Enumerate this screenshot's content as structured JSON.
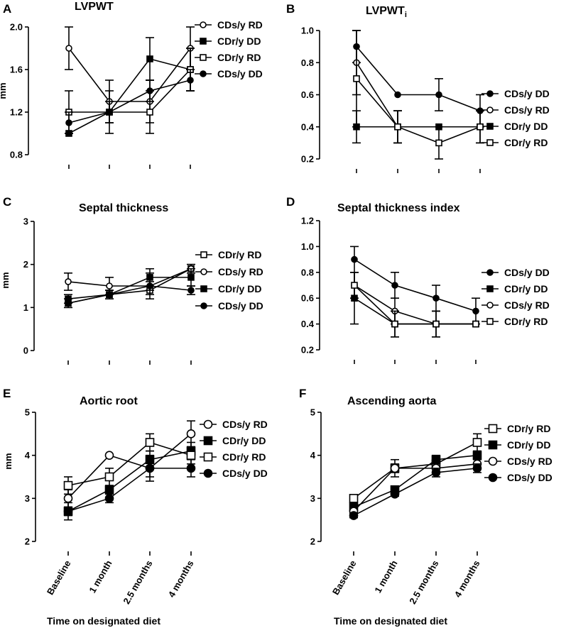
{
  "chart_data": [
    {
      "panel": "A",
      "type": "line",
      "title": "LVPWT",
      "ylabel": "mm",
      "ylim": [
        0.8,
        2.0
      ],
      "yticks": [
        0.8,
        1.2,
        1.6,
        2.0
      ],
      "tick_labels": [
        "0.8",
        "1.2",
        "1.6",
        "2.0"
      ],
      "categories": [
        "Baseline",
        "1 month",
        "2.5 months",
        "4 months"
      ],
      "show_xlabels": false,
      "legend_position": "right",
      "series": [
        {
          "name": "CDs/y RD",
          "marker": "circle-open",
          "values": [
            1.8,
            1.3,
            1.3,
            1.8
          ],
          "errors": [
            0.2,
            0.2,
            0.2,
            0.2
          ]
        },
        {
          "name": "CDr/y DD",
          "marker": "square-filled",
          "values": [
            1.0,
            1.2,
            1.7,
            1.6
          ],
          "errors": [
            0,
            0,
            0.2,
            0.2
          ]
        },
        {
          "name": "CDr/y RD",
          "marker": "square-open",
          "values": [
            1.2,
            1.2,
            1.2,
            1.6
          ],
          "errors": [
            0.2,
            0.2,
            0.2,
            0.2
          ]
        },
        {
          "name": "CDs/y DD",
          "marker": "circle-filled",
          "values": [
            1.1,
            1.2,
            1.4,
            1.5
          ],
          "errors": [
            0.1,
            0.1,
            0.1,
            0.1
          ]
        }
      ]
    },
    {
      "panel": "B",
      "type": "line",
      "title": "LVPWT",
      "title_sub": "i",
      "ylabel": "",
      "ylim": [
        0.2,
        1.0
      ],
      "yticks": [
        0.2,
        0.4,
        0.6,
        0.8,
        1.0
      ],
      "tick_labels": [
        "0.2",
        "0.4",
        "0.6",
        "0.8",
        "1.0"
      ],
      "categories": [
        "Baseline",
        "1 month",
        "2.5 months",
        "4 months"
      ],
      "show_xlabels": false,
      "legend_position": "right",
      "series": [
        {
          "name": "CDs/y DD",
          "marker": "circle-filled",
          "values": [
            0.9,
            0.6,
            0.6,
            0.5
          ],
          "errors": [
            0.1,
            0,
            0.1,
            0.1
          ]
        },
        {
          "name": "CDs/y RD",
          "marker": "circle-open",
          "values": [
            0.8,
            0.4,
            0.4,
            0.4
          ],
          "errors": [
            0.2,
            0.1,
            0,
            0.1
          ]
        },
        {
          "name": "CDr/y DD",
          "marker": "square-filled",
          "values": [
            0.4,
            0.4,
            0.4,
            0.4
          ],
          "errors": [
            0.1,
            0.1,
            0,
            0
          ]
        },
        {
          "name": "CDr/y RD",
          "marker": "square-open",
          "values": [
            0.7,
            0.4,
            0.3,
            0.4
          ],
          "errors": [
            0.3,
            0.1,
            0.1,
            0.1
          ]
        }
      ]
    },
    {
      "panel": "C",
      "type": "line",
      "title": "Septal thickness",
      "ylabel": "mm",
      "ylim": [
        0,
        3
      ],
      "yticks": [
        0,
        1,
        2,
        3
      ],
      "tick_labels": [
        "0",
        "1",
        "2",
        "3"
      ],
      "categories": [
        "Baseline",
        "1 month",
        "2.5 months",
        "4 months"
      ],
      "show_xlabels": false,
      "legend_position": "right",
      "series": [
        {
          "name": "CDr/y RD",
          "marker": "square-open",
          "values": [
            1.1,
            1.3,
            1.4,
            1.9
          ],
          "errors": [
            0.1,
            0.1,
            0.1,
            0.1
          ]
        },
        {
          "name": "CDs/y RD",
          "marker": "circle-open",
          "values": [
            1.6,
            1.5,
            1.5,
            1.9
          ],
          "errors": [
            0.2,
            0.2,
            0.3,
            0.1
          ]
        },
        {
          "name": "CDr/y DD",
          "marker": "square-filled",
          "values": [
            1.2,
            1.3,
            1.7,
            1.7
          ],
          "errors": [
            0.1,
            0.1,
            0.2,
            0.2
          ]
        },
        {
          "name": "CDs/y DD",
          "marker": "circle-filled",
          "values": [
            1.1,
            1.3,
            1.5,
            1.4
          ],
          "errors": [
            0.1,
            0.1,
            0.1,
            0.1
          ]
        }
      ]
    },
    {
      "panel": "D",
      "type": "line",
      "title": "Septal thickness index",
      "ylabel": "",
      "ylim": [
        0.2,
        1.2
      ],
      "yticks": [
        0.2,
        0.4,
        0.6,
        0.8,
        1.0,
        1.2
      ],
      "tick_labels": [
        "0.2",
        "0.4",
        "0.6",
        "0.8",
        "1.0",
        "1.2"
      ],
      "categories": [
        "Baseline",
        "1 month",
        "2.5 months",
        "4 months"
      ],
      "show_xlabels": false,
      "legend_position": "right",
      "series": [
        {
          "name": "CDs/y DD",
          "marker": "circle-filled",
          "values": [
            0.9,
            0.7,
            0.6,
            0.5
          ],
          "errors": [
            0.1,
            0.1,
            0.1,
            0.1
          ]
        },
        {
          "name": "CDr/y DD",
          "marker": "square-filled",
          "values": [
            0.6,
            0.4,
            0.4,
            0.4
          ],
          "errors": [
            0.2,
            0.1,
            0.1,
            0
          ]
        },
        {
          "name": "CDs/y RD",
          "marker": "circle-open",
          "values": [
            0.7,
            0.5,
            0.4,
            0.4
          ],
          "errors": [
            0.1,
            0.1,
            0.1,
            0
          ]
        },
        {
          "name": "CDr/y RD",
          "marker": "square-open",
          "values": [
            0.7,
            0.4,
            0.4,
            0.4
          ],
          "errors": [
            0.1,
            0.1,
            0,
            0
          ]
        }
      ]
    },
    {
      "panel": "E",
      "type": "line",
      "title": "Aortic root",
      "ylabel": "mm",
      "ylim": [
        2,
        5
      ],
      "yticks": [
        2,
        3,
        4,
        5
      ],
      "tick_labels": [
        "2",
        "3",
        "4",
        "5"
      ],
      "categories": [
        "Baseline",
        "1 month",
        "2.5 months",
        "4 months"
      ],
      "show_xlabels": true,
      "xlabel": "Time on designated diet",
      "legend_position": "right",
      "series": [
        {
          "name": "CDs/y RD",
          "marker": "circle-open",
          "values": [
            3.0,
            4.0,
            3.7,
            4.5
          ],
          "errors": [
            0.2,
            0,
            0.2,
            0.3
          ]
        },
        {
          "name": "CDr/y DD",
          "marker": "square-filled",
          "values": [
            2.7,
            3.2,
            3.9,
            4.1
          ],
          "errors": [
            0.1,
            0.1,
            0.2,
            0.2
          ]
        },
        {
          "name": "CDr/y RD",
          "marker": "square-open",
          "values": [
            3.3,
            3.5,
            4.3,
            4.0
          ],
          "errors": [
            0.2,
            0.2,
            0.2,
            0.2
          ]
        },
        {
          "name": "CDs/y DD",
          "marker": "circle-filled",
          "values": [
            2.7,
            3.0,
            3.7,
            3.7
          ],
          "errors": [
            0.2,
            0.1,
            0.3,
            0.2
          ]
        }
      ]
    },
    {
      "panel": "F",
      "type": "line",
      "title": "Ascending aorta",
      "ylabel": "",
      "ylim": [
        2,
        5
      ],
      "yticks": [
        2,
        3,
        4,
        5
      ],
      "tick_labels": [
        "2",
        "3",
        "4",
        "5"
      ],
      "categories": [
        "Baseline",
        "1 month",
        "2.5 months",
        "4 months"
      ],
      "show_xlabels": true,
      "xlabel": "Time on designated diet",
      "legend_position": "right",
      "series": [
        {
          "name": "CDr/y RD",
          "marker": "square-open",
          "values": [
            3.0,
            3.7,
            3.8,
            4.3
          ],
          "errors": [
            0.05,
            0.2,
            0.1,
            0.2
          ]
        },
        {
          "name": "CDr/y DD",
          "marker": "square-filled",
          "values": [
            2.8,
            3.2,
            3.9,
            4.0
          ],
          "errors": [
            0.05,
            0.05,
            0.1,
            0.1
          ]
        },
        {
          "name": "CDs/y RD",
          "marker": "circle-open",
          "values": [
            2.7,
            3.7,
            3.7,
            3.8
          ],
          "errors": [
            0.05,
            0.1,
            0.1,
            0.1
          ]
        },
        {
          "name": "CDs/y DD",
          "marker": "circle-filled",
          "values": [
            2.6,
            3.1,
            3.6,
            3.7
          ],
          "errors": [
            0.05,
            0.05,
            0.1,
            0.1
          ]
        }
      ]
    }
  ]
}
